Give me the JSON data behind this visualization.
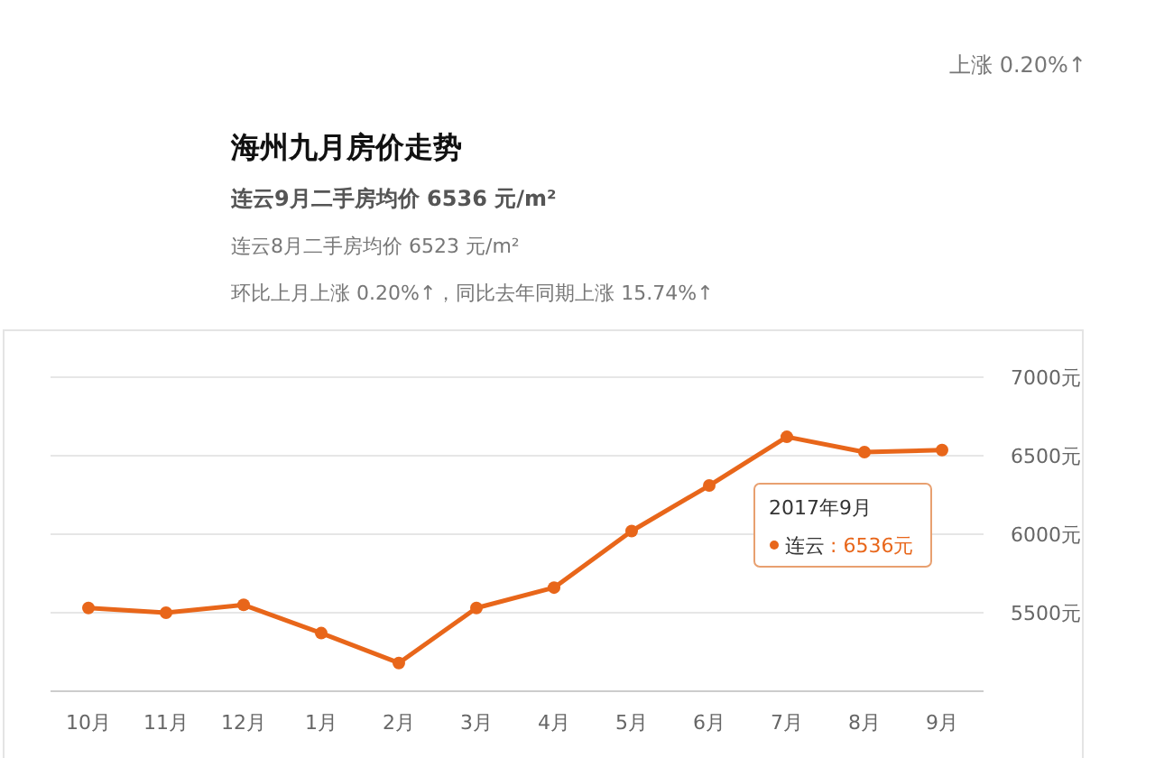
{
  "chart_data": {
    "type": "line",
    "title": "海州九月房价走势",
    "subtitle": "连云9月二手房均价 6536 元/m²",
    "annotations": [
      "上涨 0.20%↑",
      "连云8月二手房均价 6523 元/m²",
      "环比上月上涨 0.20%↑，同比去年同期上涨 15.74%↑",
      "2017年9月",
      ": 6536元"
    ],
    "categories": [
      "10月",
      "11月",
      "12月",
      "1月",
      "2月",
      "3月",
      "4月",
      "5月",
      "6月",
      "7月",
      "8月",
      "9月"
    ],
    "series": [
      {
        "name": "连云",
        "color": "#e8661a",
        "values": [
          5530,
          5500,
          5550,
          5370,
          5180,
          5530,
          5660,
          6020,
          6310,
          6620,
          6523,
          6536
        ]
      }
    ],
    "ylim": [
      5000,
      7000
    ],
    "yticks": [
      {
        "value": 5500,
        "label": "5500元"
      },
      {
        "value": 6000,
        "label": "6000元"
      },
      {
        "value": 6500,
        "label": "6500元"
      },
      {
        "value": 7000,
        "label": "7000元"
      }
    ],
    "grid": "y",
    "marker": "circle",
    "line_style": "solid",
    "legend": "right"
  }
}
